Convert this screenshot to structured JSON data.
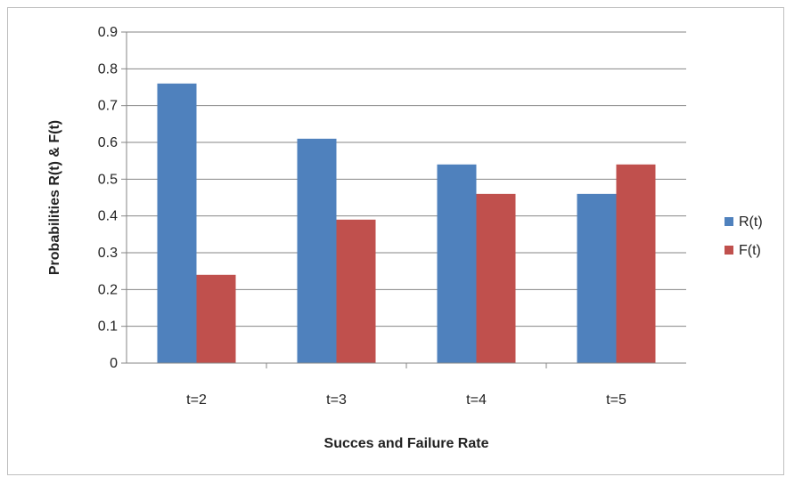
{
  "chart_data": {
    "type": "bar",
    "categories": [
      "t=2",
      "t=3",
      "t=4",
      "t=5"
    ],
    "series": [
      {
        "name": "R(t)",
        "values": [
          0.76,
          0.61,
          0.54,
          0.46
        ],
        "color": "#4F81BD"
      },
      {
        "name": "F(t)",
        "values": [
          0.24,
          0.39,
          0.46,
          0.54
        ],
        "color": "#C0504D"
      }
    ],
    "title": "",
    "xlabel": "Succes and Failure Rate",
    "ylabel": "Probabilities R(t) & F(t)",
    "ylim": [
      0,
      0.9
    ],
    "yticks": [
      "0",
      "0.1",
      "0.2",
      "0.3",
      "0.4",
      "0.5",
      "0.6",
      "0.7",
      "0.8",
      "0.9"
    ],
    "grid": true,
    "legend_position": "right"
  }
}
